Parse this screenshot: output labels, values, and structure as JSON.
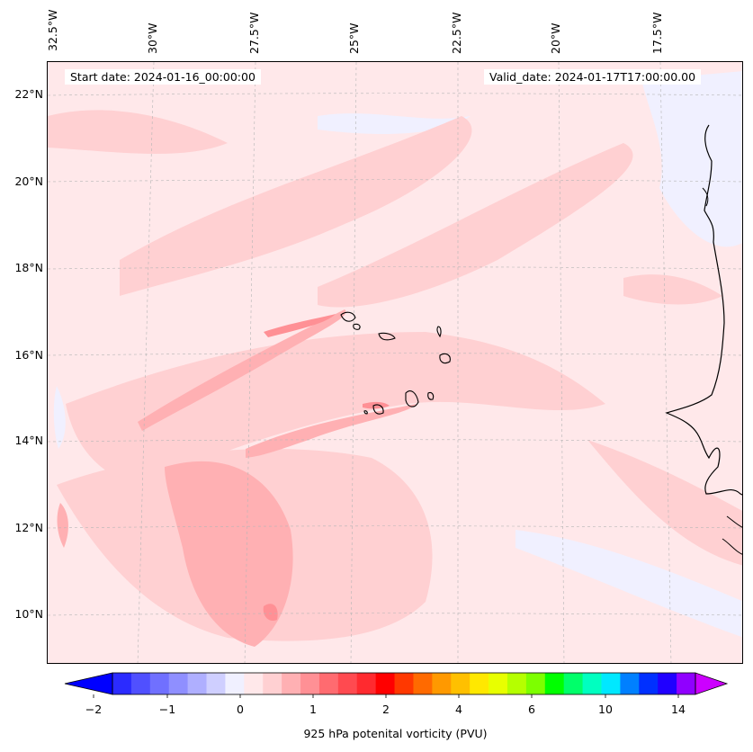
{
  "header": {
    "start_date": "Start date: 2024-01-16_00:00:00",
    "valid_date": "Valid_date: 2024-01-17T17:00:00.00"
  },
  "axes": {
    "longitude_labels": [
      "32.5°W",
      "30°W",
      "27.5°W",
      "25°W",
      "22.5°W",
      "20°W",
      "17.5°W"
    ],
    "latitude_labels": [
      "22°N",
      "20°N",
      "18°N",
      "16°N",
      "14°N",
      "12°N",
      "10°N"
    ]
  },
  "colorbar": {
    "title": "925 hPa potenital vorticity (PVU)",
    "tick_labels": [
      "−2",
      "−1",
      "0",
      "1",
      "2",
      "4",
      "6",
      "10",
      "14"
    ],
    "extend": "both",
    "colors": [
      "#0000ff",
      "#2b2bff",
      "#5050ff",
      "#7070ff",
      "#8f8fff",
      "#afafff",
      "#cfcfff",
      "#f0f0ff",
      "#ffe8ea",
      "#ffd0d2",
      "#ffb0b3",
      "#ff9095",
      "#ff6b70",
      "#ff4a50",
      "#ff2a2f",
      "#ff0000",
      "#ff3800",
      "#ff6a00",
      "#ff9900",
      "#ffc000",
      "#ffe800",
      "#e8ff00",
      "#b5ff00",
      "#7dff00",
      "#00ff00",
      "#00ff6a",
      "#00ffc0",
      "#00e8ff",
      "#0080ff",
      "#0030ff",
      "#2000ff",
      "#9000ff",
      "#cc00ff"
    ],
    "under_color": "#0000ff",
    "over_color": "#cc00ff"
  },
  "map": {
    "region": "Cape Verde / West Africa coast",
    "lon_range": [
      -32.5,
      -15.5
    ],
    "lat_range": [
      9,
      22.8
    ],
    "background_color": "#ffe8ea",
    "coastline_color": "#000000"
  }
}
